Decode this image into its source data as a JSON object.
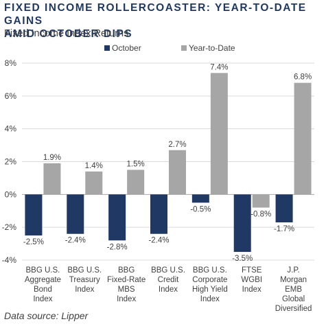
{
  "title_line1": "FIXED INCOME ROLLERCOASTER: YEAR-TO-DATE GAINS",
  "title_line2": "AMID OCTOBER DIPS",
  "subtitle": "Fixed Income Index Returns",
  "source": "Data source: Lipper",
  "colors": {
    "october": "#1f3864",
    "ytd": "#a6a6a6",
    "grid": "#d9d9d9",
    "axis": "#a6a6a6"
  },
  "chart_data": {
    "type": "bar",
    "categories": [
      [
        "BBG U.S.",
        "Aggregate",
        "Bond",
        "Index"
      ],
      [
        "BBG U.S.",
        "Treasury",
        "Index"
      ],
      [
        "BBG",
        "Fixed-Rate",
        "MBS",
        "Index"
      ],
      [
        "BBG U.S.",
        "Credit",
        "Index"
      ],
      [
        "BBG U.S.",
        "Corporate",
        "High Yield",
        "Index"
      ],
      [
        "FTSE",
        "WGBI",
        "Index"
      ],
      [
        "J.P.",
        "Morgan",
        "EMB",
        "Global",
        "Diversified"
      ]
    ],
    "series": [
      {
        "name": "October",
        "values": [
          -2.5,
          -2.4,
          -2.8,
          -2.4,
          -0.5,
          -3.5,
          -1.7
        ],
        "labels": [
          "-2.5%",
          "-2.4%",
          "-2.8%",
          "-2.4%",
          "-0.5%",
          "-3.5%",
          "-1.7%"
        ]
      },
      {
        "name": "Year-to-Date",
        "values": [
          1.9,
          1.4,
          1.5,
          2.7,
          7.4,
          -0.8,
          6.8
        ],
        "labels": [
          "1.9%",
          "1.4%",
          "1.5%",
          "2.7%",
          "7.4%",
          "-0.8%",
          "6.8%"
        ]
      }
    ],
    "yticks": [
      8,
      6,
      4,
      2,
      0,
      -2,
      -4
    ],
    "ytick_labels": [
      "8%",
      "6%",
      "4%",
      "2%",
      "0%",
      "-2%",
      "-4%"
    ],
    "ylim": [
      -4,
      8
    ],
    "grid": true,
    "legend": "top-left"
  }
}
